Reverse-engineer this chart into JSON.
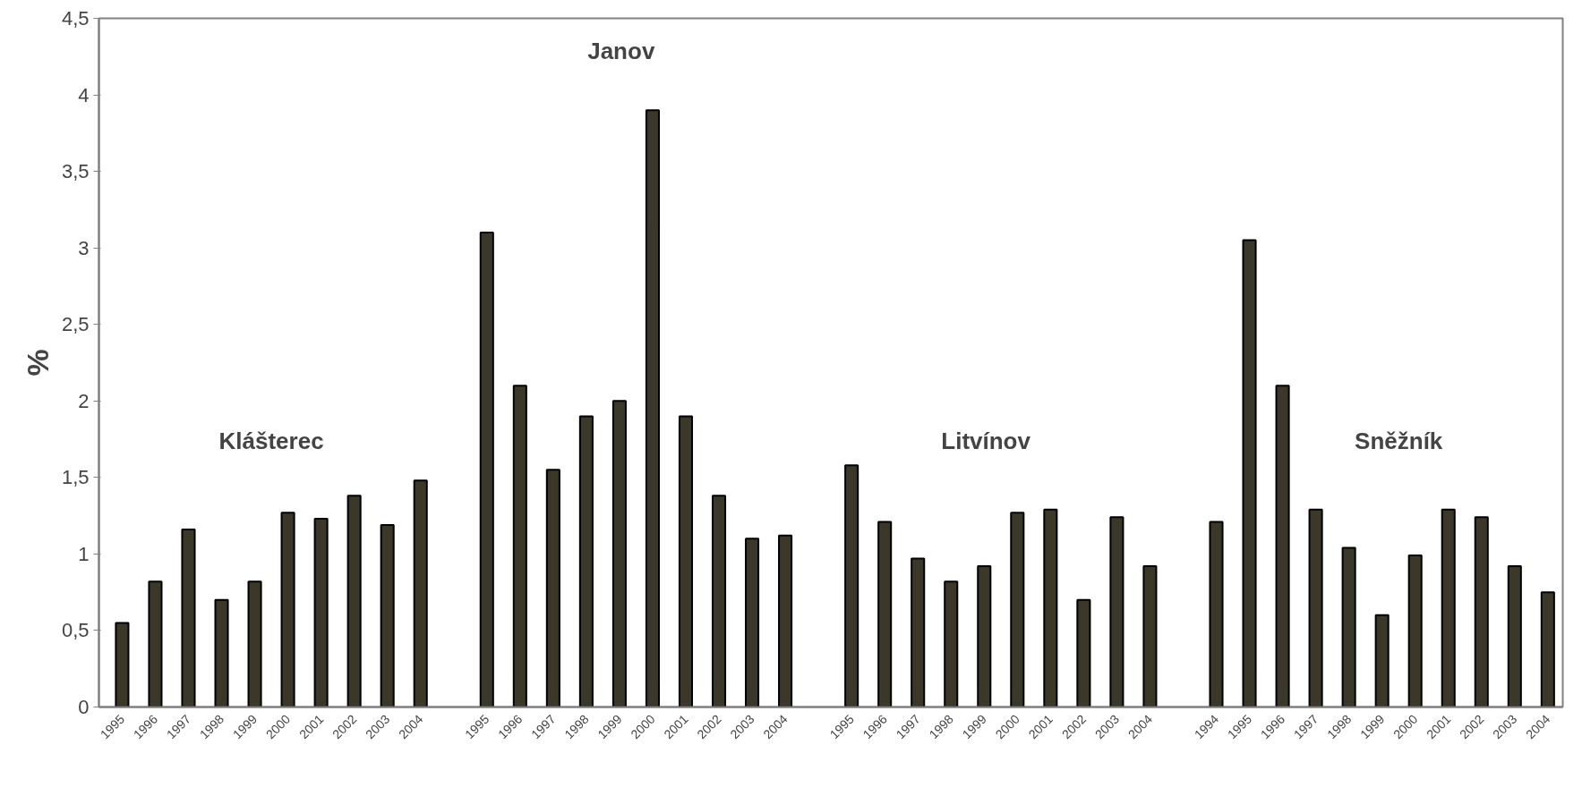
{
  "chart_data": {
    "type": "bar",
    "ylabel": "%",
    "categories": [
      "1995",
      "1996",
      "1997",
      "1998",
      "1999",
      "2000",
      "2001",
      "2002",
      "2003",
      "2004",
      null,
      "1995",
      "1996",
      "1997",
      "1998",
      "1999",
      "2000",
      "2001",
      "2002",
      "2003",
      "2004",
      null,
      "1995",
      "1996",
      "1997",
      "1998",
      "1999",
      "2000",
      "2001",
      "2002",
      "2003",
      "2004",
      null,
      "1994",
      "1995",
      "1996",
      "1997",
      "1998",
      "1999",
      "2000",
      "2001",
      "2002",
      "2003",
      "2004"
    ],
    "values": [
      0.55,
      0.82,
      1.16,
      0.7,
      0.82,
      1.27,
      1.23,
      1.38,
      1.19,
      1.48,
      null,
      3.1,
      2.1,
      1.55,
      1.9,
      2.0,
      3.9,
      1.9,
      1.38,
      1.1,
      1.12,
      null,
      1.58,
      1.21,
      0.97,
      0.82,
      0.92,
      1.27,
      1.29,
      0.7,
      1.24,
      0.92,
      null,
      1.21,
      3.05,
      2.1,
      1.29,
      1.04,
      0.6,
      0.99,
      1.29,
      1.24,
      0.92,
      0.75
    ],
    "color": "#3b3829",
    "annotations": [
      "Klášterec",
      "Janov",
      "Litvínov",
      "Sněžník"
    ],
    "ylim": [
      0,
      4.5
    ],
    "yticks": [
      0,
      {
        "value": 0.5,
        "label": "0,5"
      },
      1,
      {
        "value": 1.5,
        "label": "1,5"
      },
      2,
      {
        "value": 2.5,
        "label": "2,5"
      },
      3,
      {
        "value": 3.5,
        "label": "3,5"
      },
      4,
      {
        "value": 4.5,
        "label": "4,5"
      }
    ],
    "grid": false
  }
}
